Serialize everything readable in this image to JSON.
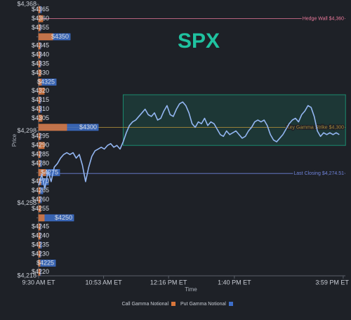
{
  "chart_data": {
    "type": "gamma_price",
    "title": "SPX",
    "title_color": "#1fc2a0",
    "x_label": "Time",
    "y_label": "Price",
    "xlim": [
      570,
      960
    ],
    "xticks": [
      {
        "value": 570,
        "label": "9:30 AM ET"
      },
      {
        "value": 653,
        "label": "10:53 AM ET"
      },
      {
        "value": 736,
        "label": "12:16 PM ET"
      },
      {
        "value": 820,
        "label": "1:40 PM ET"
      },
      {
        "value": 959,
        "label": "3:59 PM ET"
      }
    ],
    "ylim": [
      4218,
      4368
    ],
    "yticks": [
      {
        "value": 4218,
        "label": "$4,218"
      },
      {
        "value": 4258,
        "label": "$4,258"
      },
      {
        "value": 4298,
        "label": "$4,298"
      },
      {
        "value": 4368,
        "label": "$4,368"
      }
    ],
    "strikes": [
      {
        "value": 4365,
        "label": "$4365"
      },
      {
        "value": 4360,
        "label": "$4360"
      },
      {
        "value": 4355,
        "label": "$4355"
      },
      {
        "value": 4350,
        "label": "$4350"
      },
      {
        "value": 4345,
        "label": "$4345"
      },
      {
        "value": 4340,
        "label": "$4340"
      },
      {
        "value": 4335,
        "label": "$4335"
      },
      {
        "value": 4330,
        "label": "$4330"
      },
      {
        "value": 4325,
        "label": "$4325"
      },
      {
        "value": 4320,
        "label": "$4320"
      },
      {
        "value": 4315,
        "label": "$4315"
      },
      {
        "value": 4310,
        "label": "$4310"
      },
      {
        "value": 4305,
        "label": "$4305"
      },
      {
        "value": 4300,
        "label": "$4300"
      },
      {
        "value": 4295,
        "label": "$4295"
      },
      {
        "value": 4290,
        "label": "$4290"
      },
      {
        "value": 4285,
        "label": "$4285"
      },
      {
        "value": 4280,
        "label": "$4280"
      },
      {
        "value": 4275,
        "label": "$4275"
      },
      {
        "value": 4270,
        "label": "$4270"
      },
      {
        "value": 4265,
        "label": "$4265"
      },
      {
        "value": 4260,
        "label": "$4260"
      },
      {
        "value": 4255,
        "label": "$4255"
      },
      {
        "value": 4250,
        "label": "$4250"
      },
      {
        "value": 4245,
        "label": "$4245"
      },
      {
        "value": 4240,
        "label": "$4240"
      },
      {
        "value": 4235,
        "label": "$4235"
      },
      {
        "value": 4230,
        "label": "$4230"
      },
      {
        "value": 4225,
        "label": "$4225"
      },
      {
        "value": 4220,
        "label": "$4220"
      }
    ],
    "gamma_xlim": [
      0,
      100
    ],
    "series": [
      {
        "name": "Call Gamma Notional",
        "color": "#d9763a",
        "values": [
          2,
          6,
          2,
          20,
          2,
          2,
          2,
          3,
          4,
          8,
          2,
          2,
          5,
          40,
          2,
          8,
          2,
          2,
          10,
          3,
          2,
          2,
          3,
          8,
          2,
          2,
          2,
          2,
          2,
          2
        ]
      },
      {
        "name": "Put Gamma Notional",
        "color": "#3d6ec9",
        "values": [
          4,
          2,
          3,
          45,
          3,
          3,
          3,
          3,
          25,
          3,
          3,
          4,
          3,
          85,
          3,
          3,
          3,
          4,
          30,
          14,
          6,
          4,
          3,
          50,
          3,
          3,
          4,
          3,
          24,
          3
        ]
      }
    ],
    "price": {
      "color": "#93b6f2",
      "x": [
        570,
        574,
        578,
        582,
        586,
        590,
        594,
        598,
        602,
        606,
        610,
        614,
        618,
        622,
        626,
        630,
        634,
        638,
        642,
        646,
        650,
        654,
        658,
        662,
        666,
        670,
        674,
        678,
        682,
        686,
        690,
        694,
        698,
        702,
        706,
        710,
        714,
        718,
        722,
        726,
        730,
        734,
        738,
        742,
        746,
        750,
        754,
        758,
        762,
        766,
        770,
        774,
        778,
        782,
        786,
        790,
        794,
        798,
        802,
        806,
        810,
        814,
        818,
        822,
        826,
        830,
        834,
        838,
        842,
        846,
        850,
        854,
        858,
        862,
        866,
        870,
        874,
        878,
        882,
        886,
        890,
        894,
        898,
        902,
        906,
        910,
        914,
        918,
        922,
        926,
        930,
        934,
        938,
        942,
        946,
        950,
        954
      ],
      "values": [
        4268,
        4274,
        4266,
        4276,
        4270,
        4278,
        4280,
        4283,
        4285,
        4286,
        4285,
        4286,
        4283,
        4285,
        4279,
        4270,
        4278,
        4284,
        4287,
        4288,
        4289,
        4288,
        4290,
        4291,
        4289,
        4290,
        4288,
        4292,
        4297,
        4301,
        4303,
        4304,
        4306,
        4308,
        4310,
        4307,
        4306,
        4308,
        4304,
        4305,
        4309,
        4312,
        4307,
        4306,
        4310,
        4313,
        4314,
        4312,
        4308,
        4302,
        4300,
        4303,
        4302,
        4305,
        4301,
        4303,
        4302,
        4299,
        4296,
        4295,
        4298,
        4296,
        4297,
        4298,
        4296,
        4294,
        4295,
        4298,
        4300,
        4303,
        4304,
        4303,
        4304,
        4301,
        4296,
        4293,
        4292,
        4294,
        4296,
        4299,
        4302,
        4304,
        4305,
        4303,
        4307,
        4309,
        4312,
        4311,
        4306,
        4298,
        4295,
        4297,
        4296,
        4297,
        4296,
        4297,
        4296
      ]
    },
    "levels": [
      {
        "label": "Hedge Wall $4,360",
        "value": 4360,
        "color": "#e8789a"
      },
      {
        "label": "Key Gamma Strike $4,300",
        "value": 4300,
        "color": "#a88a3a"
      },
      {
        "label": "Last Closing $4,274.51",
        "value": 4274.51,
        "color": "#6f83da"
      }
    ],
    "range_box": {
      "x": [
        678,
        962
      ],
      "ylim": [
        4290,
        4318
      ],
      "color": "#1a8a6e"
    }
  }
}
